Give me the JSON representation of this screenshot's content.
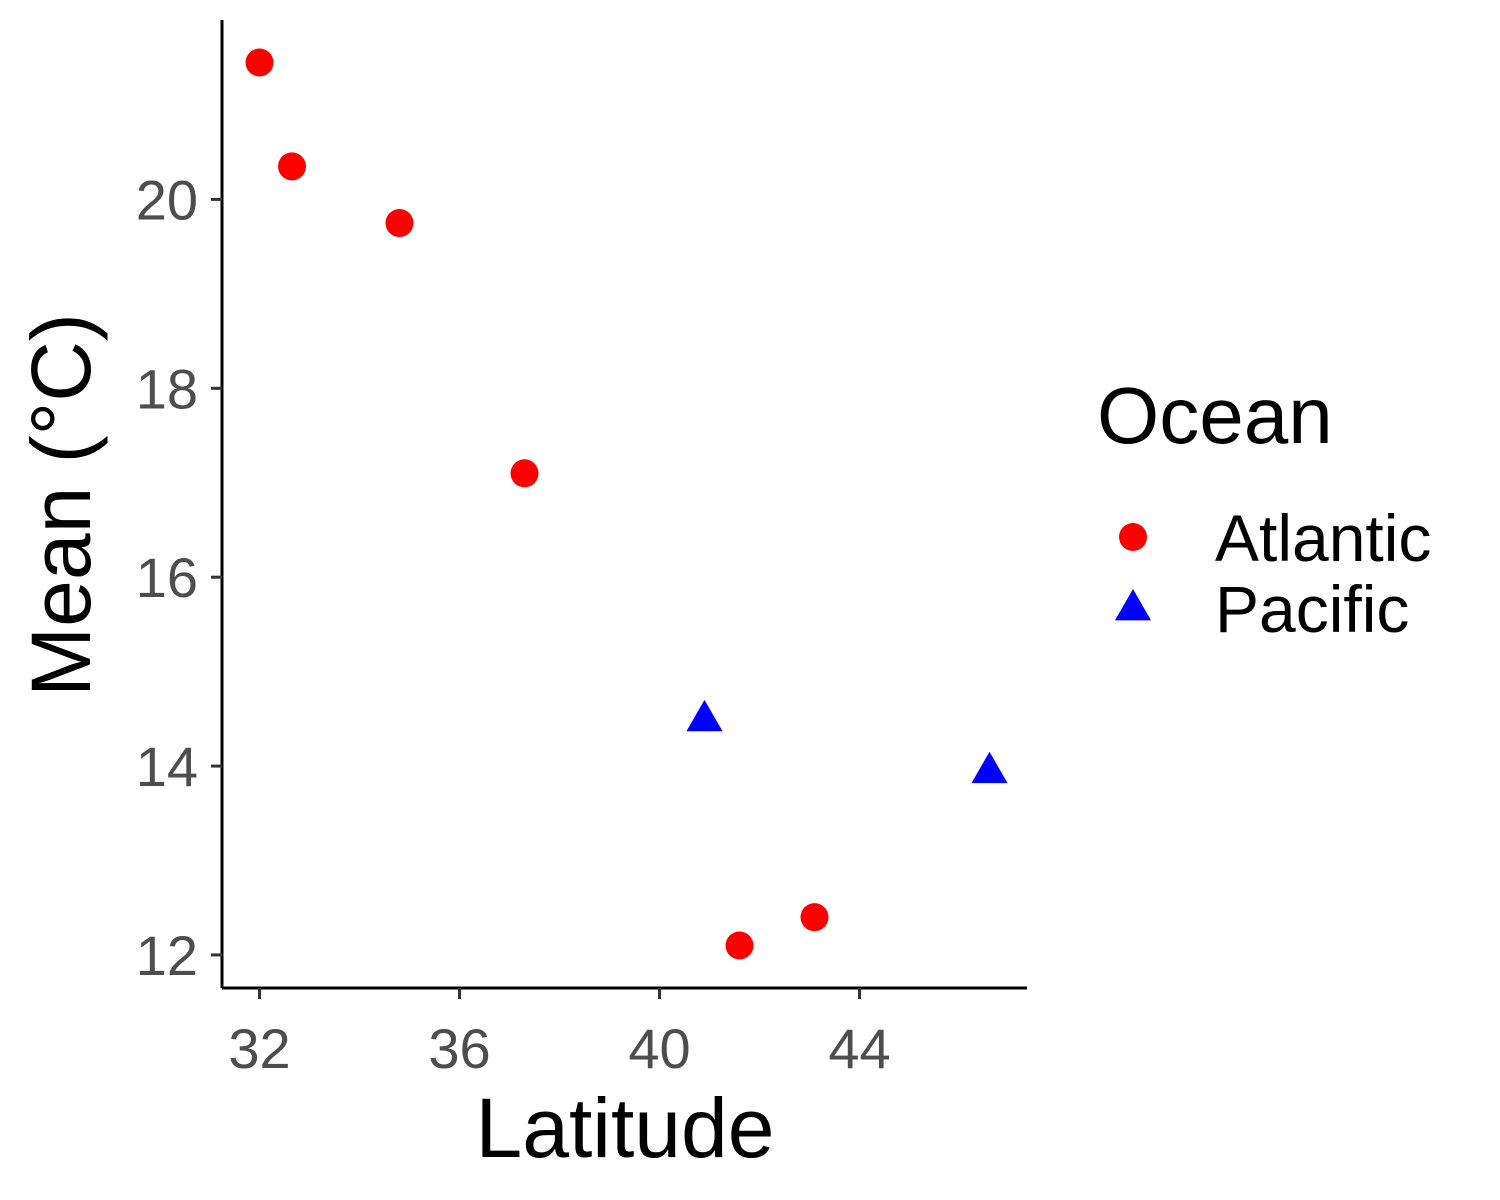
{
  "chart_data": {
    "type": "scatter",
    "title": "",
    "xlabel": "Latitude",
    "ylabel": "Mean (°C)",
    "xlim": [
      31.25,
      47.35
    ],
    "ylim": [
      11.65,
      21.9
    ],
    "x_ticks": [
      32,
      36,
      40,
      44
    ],
    "x_tick_labels": [
      "32",
      "36",
      "40",
      "44"
    ],
    "y_ticks": [
      12,
      14,
      16,
      18,
      20
    ],
    "y_tick_labels": [
      "12",
      "14",
      "16",
      "18",
      "20"
    ],
    "grid": false,
    "legend": {
      "title": "Ocean",
      "placement": "right"
    },
    "series": [
      {
        "name": "Atlantic",
        "marker": "circle",
        "color": "#ff0000",
        "points": [
          {
            "x": 32.0,
            "y": 21.45
          },
          {
            "x": 32.65,
            "y": 20.35
          },
          {
            "x": 34.8,
            "y": 19.75
          },
          {
            "x": 37.3,
            "y": 17.1
          },
          {
            "x": 41.6,
            "y": 12.1
          },
          {
            "x": 43.1,
            "y": 12.4
          }
        ]
      },
      {
        "name": "Pacific",
        "marker": "triangle",
        "color": "#0000ff",
        "points": [
          {
            "x": 40.9,
            "y": 14.5
          },
          {
            "x": 46.6,
            "y": 13.95
          }
        ]
      }
    ]
  }
}
